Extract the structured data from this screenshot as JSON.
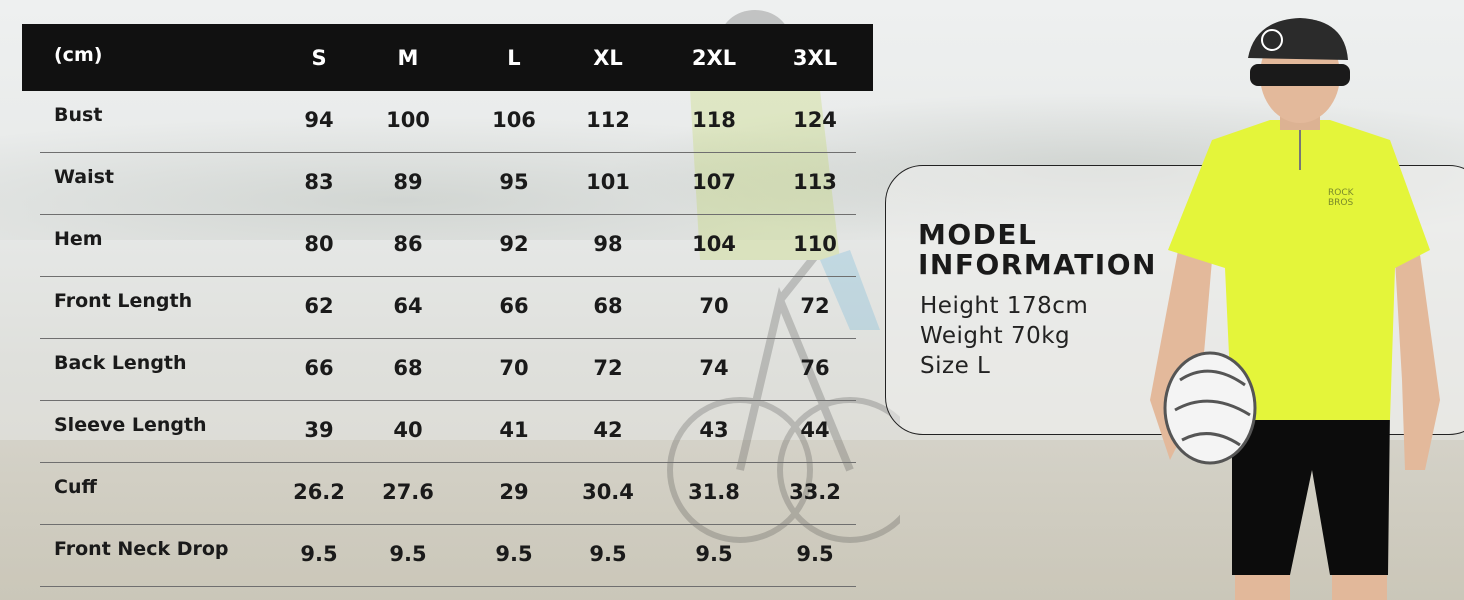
{
  "size_table": {
    "unit_label": "(cm)",
    "sizes": [
      "S",
      "M",
      "L",
      "XL",
      "2XL",
      "3XL"
    ],
    "rows": [
      {
        "label": "Bust",
        "values": [
          "94",
          "100",
          "106",
          "112",
          "118",
          "124"
        ]
      },
      {
        "label": "Waist",
        "values": [
          "83",
          "89",
          "95",
          "101",
          "107",
          "113"
        ]
      },
      {
        "label": "Hem",
        "values": [
          "80",
          "86",
          "92",
          "98",
          "104",
          "110"
        ]
      },
      {
        "label": "Front Length",
        "values": [
          "62",
          "64",
          "66",
          "68",
          "70",
          "72"
        ]
      },
      {
        "label": "Back Length",
        "values": [
          "66",
          "68",
          "70",
          "72",
          "74",
          "76"
        ]
      },
      {
        "label": "Sleeve Length",
        "values": [
          "39",
          "40",
          "41",
          "42",
          "43",
          "44"
        ]
      },
      {
        "label": "Cuff",
        "values": [
          "26.2",
          "27.6",
          "29",
          "30.4",
          "31.8",
          "33.2"
        ]
      },
      {
        "label": "Front Neck Drop",
        "values": [
          "9.5",
          "9.5",
          "9.5",
          "9.5",
          "9.5",
          "9.5"
        ]
      }
    ]
  },
  "model_info": {
    "title_line1": "MODEL",
    "title_line2": "INFORMATION",
    "height": "Height 178cm",
    "weight": "Weight 70kg",
    "size": "Size L"
  },
  "brand": {
    "jersey_logo_line1": "ROCK",
    "jersey_logo_line2": "BROS"
  },
  "colors": {
    "header_bg": "#111111",
    "jersey": "#e4f53a",
    "text": "#1a1a1a"
  }
}
